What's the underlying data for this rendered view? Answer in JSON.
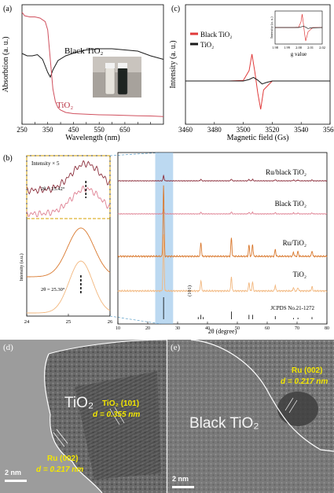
{
  "panels": {
    "a": {
      "label": "(a)"
    },
    "b": {
      "label": "(b)"
    },
    "c": {
      "label": "(c)"
    },
    "d": {
      "label": "(d)"
    },
    "e": {
      "label": "(e)"
    }
  },
  "tem_d": {
    "region_label": "TiO₂",
    "fringe1_line1": "TiO₂ (101)",
    "fringe1_line2": "d = 0.355 nm",
    "fringe2_line1": "Ru (002)",
    "fringe2_line2": "d = 0.217 nm",
    "scale": "2 nm",
    "colors": {
      "annotation": "#f2e600",
      "boundary": "#ffffff"
    }
  },
  "tem_e": {
    "region_label": "Black TiO₂",
    "fringe1_line1": "Ru (002)",
    "fringe1_line2": "d = 0.217 nm",
    "scale": "2 nm",
    "colors": {
      "annotation": "#f2e600",
      "boundary": "#ffffff"
    }
  },
  "chart_data": [
    {
      "id": "a",
      "type": "line",
      "xlabel": "Wavelength (nm)",
      "ylabel": "Absorbtion (a. u.)",
      "xlim": [
        250,
        800
      ],
      "xticks": [
        250,
        300,
        350,
        400,
        450,
        500,
        550,
        600,
        650,
        700,
        750
      ],
      "series": [
        {
          "name": "Black TiO₂",
          "color": "#1a1a1a",
          "x": [
            250,
            270,
            290,
            310,
            330,
            350,
            360,
            370,
            390,
            420,
            460,
            500,
            550,
            600,
            650,
            700,
            750,
            800
          ],
          "y": [
            0.6,
            0.58,
            0.58,
            0.59,
            0.55,
            0.44,
            0.4,
            0.46,
            0.54,
            0.58,
            0.61,
            0.63,
            0.64,
            0.64,
            0.63,
            0.62,
            0.58,
            0.55
          ]
        },
        {
          "name": "TiO₂",
          "color": "#d0505e",
          "x": [
            250,
            260,
            280,
            300,
            320,
            340,
            350,
            360,
            370,
            380,
            390,
            400,
            420,
            450,
            500,
            550,
            600,
            650,
            700,
            750,
            800
          ],
          "y": [
            0.95,
            0.92,
            0.91,
            0.91,
            0.9,
            0.87,
            0.8,
            0.55,
            0.3,
            0.19,
            0.14,
            0.12,
            0.1,
            0.09,
            0.085,
            0.08,
            0.078,
            0.075,
            0.072,
            0.07,
            0.065
          ]
        }
      ]
    },
    {
      "id": "c",
      "type": "line",
      "xlabel": "Magnetic field (Gs)",
      "ylabel": "Intensity (a. u.)",
      "xlim": [
        3460,
        3560
      ],
      "xticks": [
        3460,
        3480,
        3500,
        3520,
        3540,
        3560
      ],
      "legend": "top-left",
      "series": [
        {
          "name": "Black TiO₂",
          "color": "#e03a3a",
          "x": [
            3460,
            3490,
            3500,
            3504,
            3506,
            3508,
            3510,
            3512,
            3514,
            3520,
            3530,
            3560
          ],
          "y": [
            0,
            0,
            0.02,
            0.35,
            0.9,
            0.3,
            -0.4,
            -0.95,
            -0.3,
            0,
            0,
            0
          ]
        },
        {
          "name": "TiO₂",
          "color": "#1a1a1a",
          "x": [
            3460,
            3500,
            3504,
            3507,
            3510,
            3513,
            3516,
            3520,
            3560
          ],
          "y": [
            0,
            0,
            0.05,
            0.12,
            0.03,
            -0.1,
            -0.05,
            0,
            0
          ]
        }
      ],
      "inset": {
        "xlabel": "g value",
        "ylabel": "Intensity (a. u.)",
        "xlim": [
          1.98,
          2.02
        ],
        "xticks": [
          1.98,
          1.99,
          2.0,
          2.01,
          2.02
        ],
        "series": [
          {
            "name": "Black TiO₂",
            "color": "#e03a3a",
            "x": [
              1.98,
              1.995,
              2.0,
              2.002,
              2.003,
              2.004,
              2.005,
              2.006,
              2.008,
              2.012,
              2.02
            ],
            "y": [
              0,
              0,
              0.02,
              0.4,
              0.95,
              0.3,
              -0.4,
              -0.95,
              -0.3,
              0,
              0
            ]
          },
          {
            "name": "TiO₂",
            "color": "#1a1a1a",
            "x": [
              1.98,
              2.0,
              2.002,
              2.004,
              2.006,
              2.008,
              2.01,
              2.02
            ],
            "y": [
              0,
              0,
              0.04,
              0.1,
              0.02,
              -0.08,
              -0.03,
              0
            ]
          }
        ]
      }
    },
    {
      "id": "b-main",
      "type": "line",
      "xlabel": "2θ (degree)",
      "xlim": [
        10,
        80
      ],
      "xticks": [
        10,
        20,
        30,
        40,
        50,
        60,
        70,
        80
      ],
      "highlight_range": [
        22.5,
        28.5
      ],
      "peak_label": "(101)",
      "reference": {
        "name": "JCPDS No.21-1272",
        "positions": [
          25.3,
          36.9,
          37.8,
          38.6,
          48.0,
          53.9,
          55.1,
          62.7,
          68.8,
          70.3,
          75.0
        ],
        "heights": [
          1.0,
          0.1,
          0.2,
          0.1,
          0.35,
          0.2,
          0.2,
          0.14,
          0.06,
          0.07,
          0.1
        ]
      },
      "series": [
        {
          "name": "Ru/black TiO₂",
          "color": "#8c2f3c",
          "peaks_x": [
            25.3,
            37.8,
            48.0,
            53.9,
            55.1,
            62.7,
            68.8,
            70.3,
            75.0
          ],
          "peaks_h": [
            0.16,
            0.05,
            0.06,
            0.05,
            0.05,
            0.04,
            0.03,
            0.03,
            0.03
          ]
        },
        {
          "name": "Black TiO₂",
          "color": "#de7f91",
          "peaks_x": [
            25.3,
            37.8,
            48.0,
            53.9,
            55.1,
            62.7,
            68.8,
            70.3,
            75.0
          ],
          "peaks_h": [
            0.14,
            0.05,
            0.06,
            0.05,
            0.05,
            0.04,
            0.03,
            0.03,
            0.03
          ]
        },
        {
          "name": "Ru/TiO₂",
          "color": "#d9782d",
          "peaks_x": [
            25.3,
            37.8,
            48.0,
            53.9,
            55.1,
            62.7,
            68.8,
            70.3,
            75.0
          ],
          "peaks_h": [
            1.0,
            0.2,
            0.26,
            0.16,
            0.17,
            0.1,
            0.06,
            0.07,
            0.08
          ]
        },
        {
          "name": "TiO₂",
          "color": "#f2b77e",
          "peaks_x": [
            25.3,
            37.8,
            48.0,
            53.9,
            55.1,
            62.7,
            68.8,
            70.3,
            75.0
          ],
          "peaks_h": [
            0.8,
            0.15,
            0.2,
            0.12,
            0.13,
            0.08,
            0.05,
            0.05,
            0.06
          ]
        }
      ]
    },
    {
      "id": "b-zoom",
      "type": "line",
      "ylabel": "Intensity (a.u.)",
      "xlim": [
        24,
        26
      ],
      "xticks": [
        24,
        25,
        26
      ],
      "inset_title": "Intensity × 5",
      "upper_annotation": "2θ = 25.42°",
      "lower_annotation": "2θ = 25.30°",
      "series": [
        {
          "name": "Ru/black TiO₂",
          "color": "#8c2f3c",
          "group": "upper",
          "center": 25.42
        },
        {
          "name": "Black TiO₂",
          "color": "#de7f91",
          "group": "upper",
          "center": 25.42
        },
        {
          "name": "Ru/TiO₂",
          "color": "#d9782d",
          "group": "lower",
          "center": 25.3
        },
        {
          "name": "TiO₂",
          "color": "#f2b77e",
          "group": "lower",
          "center": 25.3
        }
      ]
    }
  ]
}
